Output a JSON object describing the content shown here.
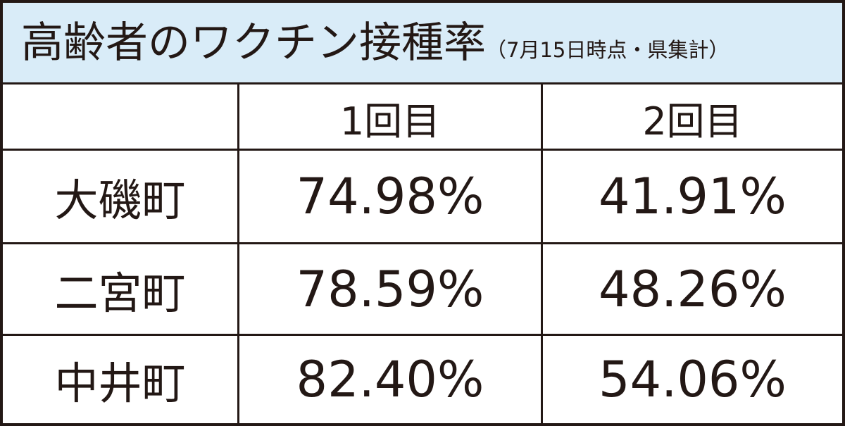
{
  "header": {
    "title": "高齢者のワクチン接種率",
    "subtitle": "（7月15日時点・県集計）"
  },
  "table": {
    "columns": [
      "1回目",
      "2回目"
    ],
    "rows": [
      [
        "大磯町",
        "74.98%",
        "41.91%"
      ],
      [
        "二宮町",
        "78.59%",
        "48.26%"
      ],
      [
        "中井町",
        "82.40%",
        "54.06%"
      ]
    ]
  }
}
